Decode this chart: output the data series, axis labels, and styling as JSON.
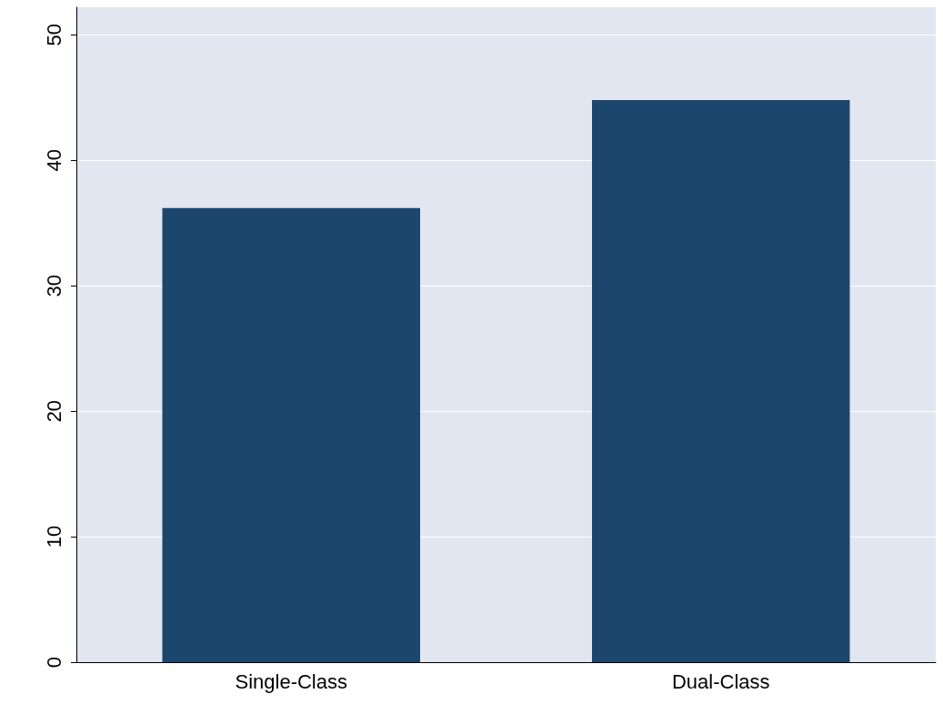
{
  "chart_data": {
    "type": "bar",
    "categories": [
      "Single-Class",
      "Dual-Class"
    ],
    "values": [
      36.2,
      44.8
    ],
    "color": "#1c466e",
    "ylim": [
      0,
      52.2
    ],
    "yticks": [
      0,
      10,
      20,
      30,
      40,
      50
    ],
    "grid": "y"
  }
}
